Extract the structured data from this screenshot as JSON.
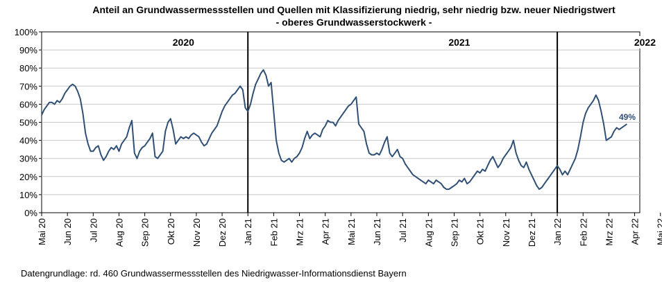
{
  "chart_data": {
    "type": "line",
    "title_line1": "Anteil an Grundwassermessstellen und Quellen mit Klassifizierung niedrig, sehr niedrig bzw. neuer Niedrigstwert",
    "title_line2": "- oberes Grundwasserstockwerk -",
    "x_ticks": [
      "Mai 20",
      "Jun 20",
      "Jul 20",
      "Aug 20",
      "Sep 20",
      "Okt 20",
      "Nov 20",
      "Dez 20",
      "Jan 21",
      "Feb 21",
      "Mrz 21",
      "Apr 21",
      "Mai 21",
      "Jun 21",
      "Jul 21",
      "Aug 21",
      "Sep 21",
      "Okt 21",
      "Nov 21",
      "Dez 21",
      "Jan 22",
      "Feb 22",
      "Mrz 22",
      "Apr 22",
      "Mai 22"
    ],
    "y_ticks": [
      "0%",
      "10%",
      "20%",
      "30%",
      "40%",
      "50%",
      "60%",
      "70%",
      "80%",
      "90%",
      "100%"
    ],
    "ylim": [
      0,
      100
    ],
    "year_labels": [
      {
        "text": "2020",
        "month_pos": 5.5
      },
      {
        "text": "2021",
        "month_pos": 16.2
      },
      {
        "text": "2022",
        "month_pos": 23.4
      }
    ],
    "year_dividers": [
      8,
      20
    ],
    "end_label": "49%",
    "line_color": "#2f4f75",
    "footer": "Datengrundlage:  rd. 460 Grundwassermessstellen  des Niedrigwasser-Informationsdienst  Bayern",
    "series": [
      {
        "points": [
          [
            0.0,
            54
          ],
          [
            0.1,
            57
          ],
          [
            0.2,
            59
          ],
          [
            0.3,
            61
          ],
          [
            0.4,
            61
          ],
          [
            0.5,
            60
          ],
          [
            0.6,
            62
          ],
          [
            0.7,
            61
          ],
          [
            0.8,
            63
          ],
          [
            0.9,
            66
          ],
          [
            1.0,
            68
          ],
          [
            1.1,
            70
          ],
          [
            1.2,
            71
          ],
          [
            1.3,
            70
          ],
          [
            1.4,
            67
          ],
          [
            1.5,
            63
          ],
          [
            1.6,
            55
          ],
          [
            1.7,
            44
          ],
          [
            1.8,
            38
          ],
          [
            1.9,
            34
          ],
          [
            2.0,
            34
          ],
          [
            2.1,
            36
          ],
          [
            2.2,
            37
          ],
          [
            2.3,
            32
          ],
          [
            2.4,
            29
          ],
          [
            2.5,
            31
          ],
          [
            2.6,
            34
          ],
          [
            2.7,
            36
          ],
          [
            2.8,
            35
          ],
          [
            2.9,
            37
          ],
          [
            3.0,
            34
          ],
          [
            3.1,
            38
          ],
          [
            3.2,
            40
          ],
          [
            3.3,
            42
          ],
          [
            3.4,
            47
          ],
          [
            3.5,
            51
          ],
          [
            3.6,
            33
          ],
          [
            3.7,
            30
          ],
          [
            3.8,
            34
          ],
          [
            3.9,
            36
          ],
          [
            4.0,
            37
          ],
          [
            4.1,
            39
          ],
          [
            4.2,
            41
          ],
          [
            4.3,
            44
          ],
          [
            4.4,
            31
          ],
          [
            4.5,
            30
          ],
          [
            4.6,
            32
          ],
          [
            4.7,
            34
          ],
          [
            4.8,
            45
          ],
          [
            4.9,
            50
          ],
          [
            5.0,
            52
          ],
          [
            5.1,
            46
          ],
          [
            5.2,
            38
          ],
          [
            5.3,
            40
          ],
          [
            5.4,
            42
          ],
          [
            5.5,
            41
          ],
          [
            5.6,
            42
          ],
          [
            5.7,
            41
          ],
          [
            5.8,
            43
          ],
          [
            5.9,
            44
          ],
          [
            6.0,
            43
          ],
          [
            6.1,
            42
          ],
          [
            6.2,
            39
          ],
          [
            6.3,
            37
          ],
          [
            6.4,
            38
          ],
          [
            6.5,
            41
          ],
          [
            6.6,
            44
          ],
          [
            6.7,
            46
          ],
          [
            6.8,
            48
          ],
          [
            6.9,
            52
          ],
          [
            7.0,
            56
          ],
          [
            7.1,
            59
          ],
          [
            7.2,
            61
          ],
          [
            7.3,
            63
          ],
          [
            7.4,
            65
          ],
          [
            7.5,
            66
          ],
          [
            7.6,
            68
          ],
          [
            7.7,
            70
          ],
          [
            7.8,
            68
          ],
          [
            7.9,
            58
          ],
          [
            8.0,
            56
          ],
          [
            8.1,
            60
          ],
          [
            8.2,
            66
          ],
          [
            8.3,
            71
          ],
          [
            8.4,
            74
          ],
          [
            8.5,
            77
          ],
          [
            8.6,
            79
          ],
          [
            8.7,
            76
          ],
          [
            8.8,
            70
          ],
          [
            8.9,
            72
          ],
          [
            9.0,
            56
          ],
          [
            9.1,
            40
          ],
          [
            9.2,
            33
          ],
          [
            9.3,
            29
          ],
          [
            9.4,
            28
          ],
          [
            9.5,
            29
          ],
          [
            9.6,
            30
          ],
          [
            9.7,
            28
          ],
          [
            9.8,
            30
          ],
          [
            9.9,
            31
          ],
          [
            10.0,
            33
          ],
          [
            10.1,
            36
          ],
          [
            10.2,
            41
          ],
          [
            10.3,
            45
          ],
          [
            10.4,
            41
          ],
          [
            10.5,
            43
          ],
          [
            10.6,
            44
          ],
          [
            10.7,
            43
          ],
          [
            10.8,
            42
          ],
          [
            10.9,
            46
          ],
          [
            11.0,
            48
          ],
          [
            11.1,
            51
          ],
          [
            11.2,
            50
          ],
          [
            11.3,
            50
          ],
          [
            11.4,
            48
          ],
          [
            11.5,
            51
          ],
          [
            11.6,
            53
          ],
          [
            11.7,
            55
          ],
          [
            11.8,
            57
          ],
          [
            11.9,
            59
          ],
          [
            12.0,
            60
          ],
          [
            12.1,
            62
          ],
          [
            12.2,
            64
          ],
          [
            12.3,
            49
          ],
          [
            12.4,
            47
          ],
          [
            12.5,
            45
          ],
          [
            12.6,
            38
          ],
          [
            12.7,
            33
          ],
          [
            12.8,
            32
          ],
          [
            12.9,
            32
          ],
          [
            13.0,
            33
          ],
          [
            13.1,
            32
          ],
          [
            13.2,
            35
          ],
          [
            13.3,
            39
          ],
          [
            13.4,
            42
          ],
          [
            13.5,
            33
          ],
          [
            13.6,
            31
          ],
          [
            13.7,
            33
          ],
          [
            13.8,
            35
          ],
          [
            13.9,
            31
          ],
          [
            14.0,
            30
          ],
          [
            14.1,
            27
          ],
          [
            14.2,
            25
          ],
          [
            14.3,
            23
          ],
          [
            14.4,
            21
          ],
          [
            14.5,
            20
          ],
          [
            14.6,
            19
          ],
          [
            14.7,
            18
          ],
          [
            14.8,
            17
          ],
          [
            14.9,
            16
          ],
          [
            15.0,
            18
          ],
          [
            15.1,
            17
          ],
          [
            15.2,
            16
          ],
          [
            15.3,
            18
          ],
          [
            15.4,
            17
          ],
          [
            15.5,
            16
          ],
          [
            15.6,
            14
          ],
          [
            15.7,
            13
          ],
          [
            15.8,
            13
          ],
          [
            15.9,
            14
          ],
          [
            16.0,
            15
          ],
          [
            16.1,
            16
          ],
          [
            16.2,
            18
          ],
          [
            16.3,
            17
          ],
          [
            16.4,
            19
          ],
          [
            16.5,
            16
          ],
          [
            16.6,
            17
          ],
          [
            16.7,
            19
          ],
          [
            16.8,
            21
          ],
          [
            16.9,
            23
          ],
          [
            17.0,
            22
          ],
          [
            17.1,
            24
          ],
          [
            17.2,
            23
          ],
          [
            17.3,
            26
          ],
          [
            17.4,
            29
          ],
          [
            17.5,
            31
          ],
          [
            17.6,
            28
          ],
          [
            17.7,
            25
          ],
          [
            17.8,
            27
          ],
          [
            17.9,
            30
          ],
          [
            18.0,
            32
          ],
          [
            18.1,
            34
          ],
          [
            18.2,
            36
          ],
          [
            18.3,
            40
          ],
          [
            18.4,
            33
          ],
          [
            18.5,
            29
          ],
          [
            18.6,
            26
          ],
          [
            18.7,
            25
          ],
          [
            18.8,
            28
          ],
          [
            18.9,
            24
          ],
          [
            19.0,
            21
          ],
          [
            19.1,
            18
          ],
          [
            19.2,
            15
          ],
          [
            19.3,
            13
          ],
          [
            19.4,
            14
          ],
          [
            19.5,
            16
          ],
          [
            19.6,
            18
          ],
          [
            19.7,
            20
          ],
          [
            19.8,
            22
          ],
          [
            19.9,
            24
          ],
          [
            20.0,
            26
          ],
          [
            20.1,
            24
          ],
          [
            20.2,
            21
          ],
          [
            20.3,
            23
          ],
          [
            20.4,
            21
          ],
          [
            20.5,
            24
          ],
          [
            20.6,
            27
          ],
          [
            20.7,
            30
          ],
          [
            20.8,
            35
          ],
          [
            20.9,
            42
          ],
          [
            21.0,
            50
          ],
          [
            21.1,
            55
          ],
          [
            21.2,
            58
          ],
          [
            21.3,
            60
          ],
          [
            21.4,
            62
          ],
          [
            21.5,
            65
          ],
          [
            21.6,
            62
          ],
          [
            21.7,
            56
          ],
          [
            21.8,
            49
          ],
          [
            21.9,
            40
          ],
          [
            22.0,
            41
          ],
          [
            22.1,
            42
          ],
          [
            22.2,
            45
          ],
          [
            22.3,
            47
          ],
          [
            22.4,
            46
          ],
          [
            22.5,
            47
          ],
          [
            22.6,
            48
          ],
          [
            22.7,
            49
          ]
        ]
      }
    ]
  }
}
